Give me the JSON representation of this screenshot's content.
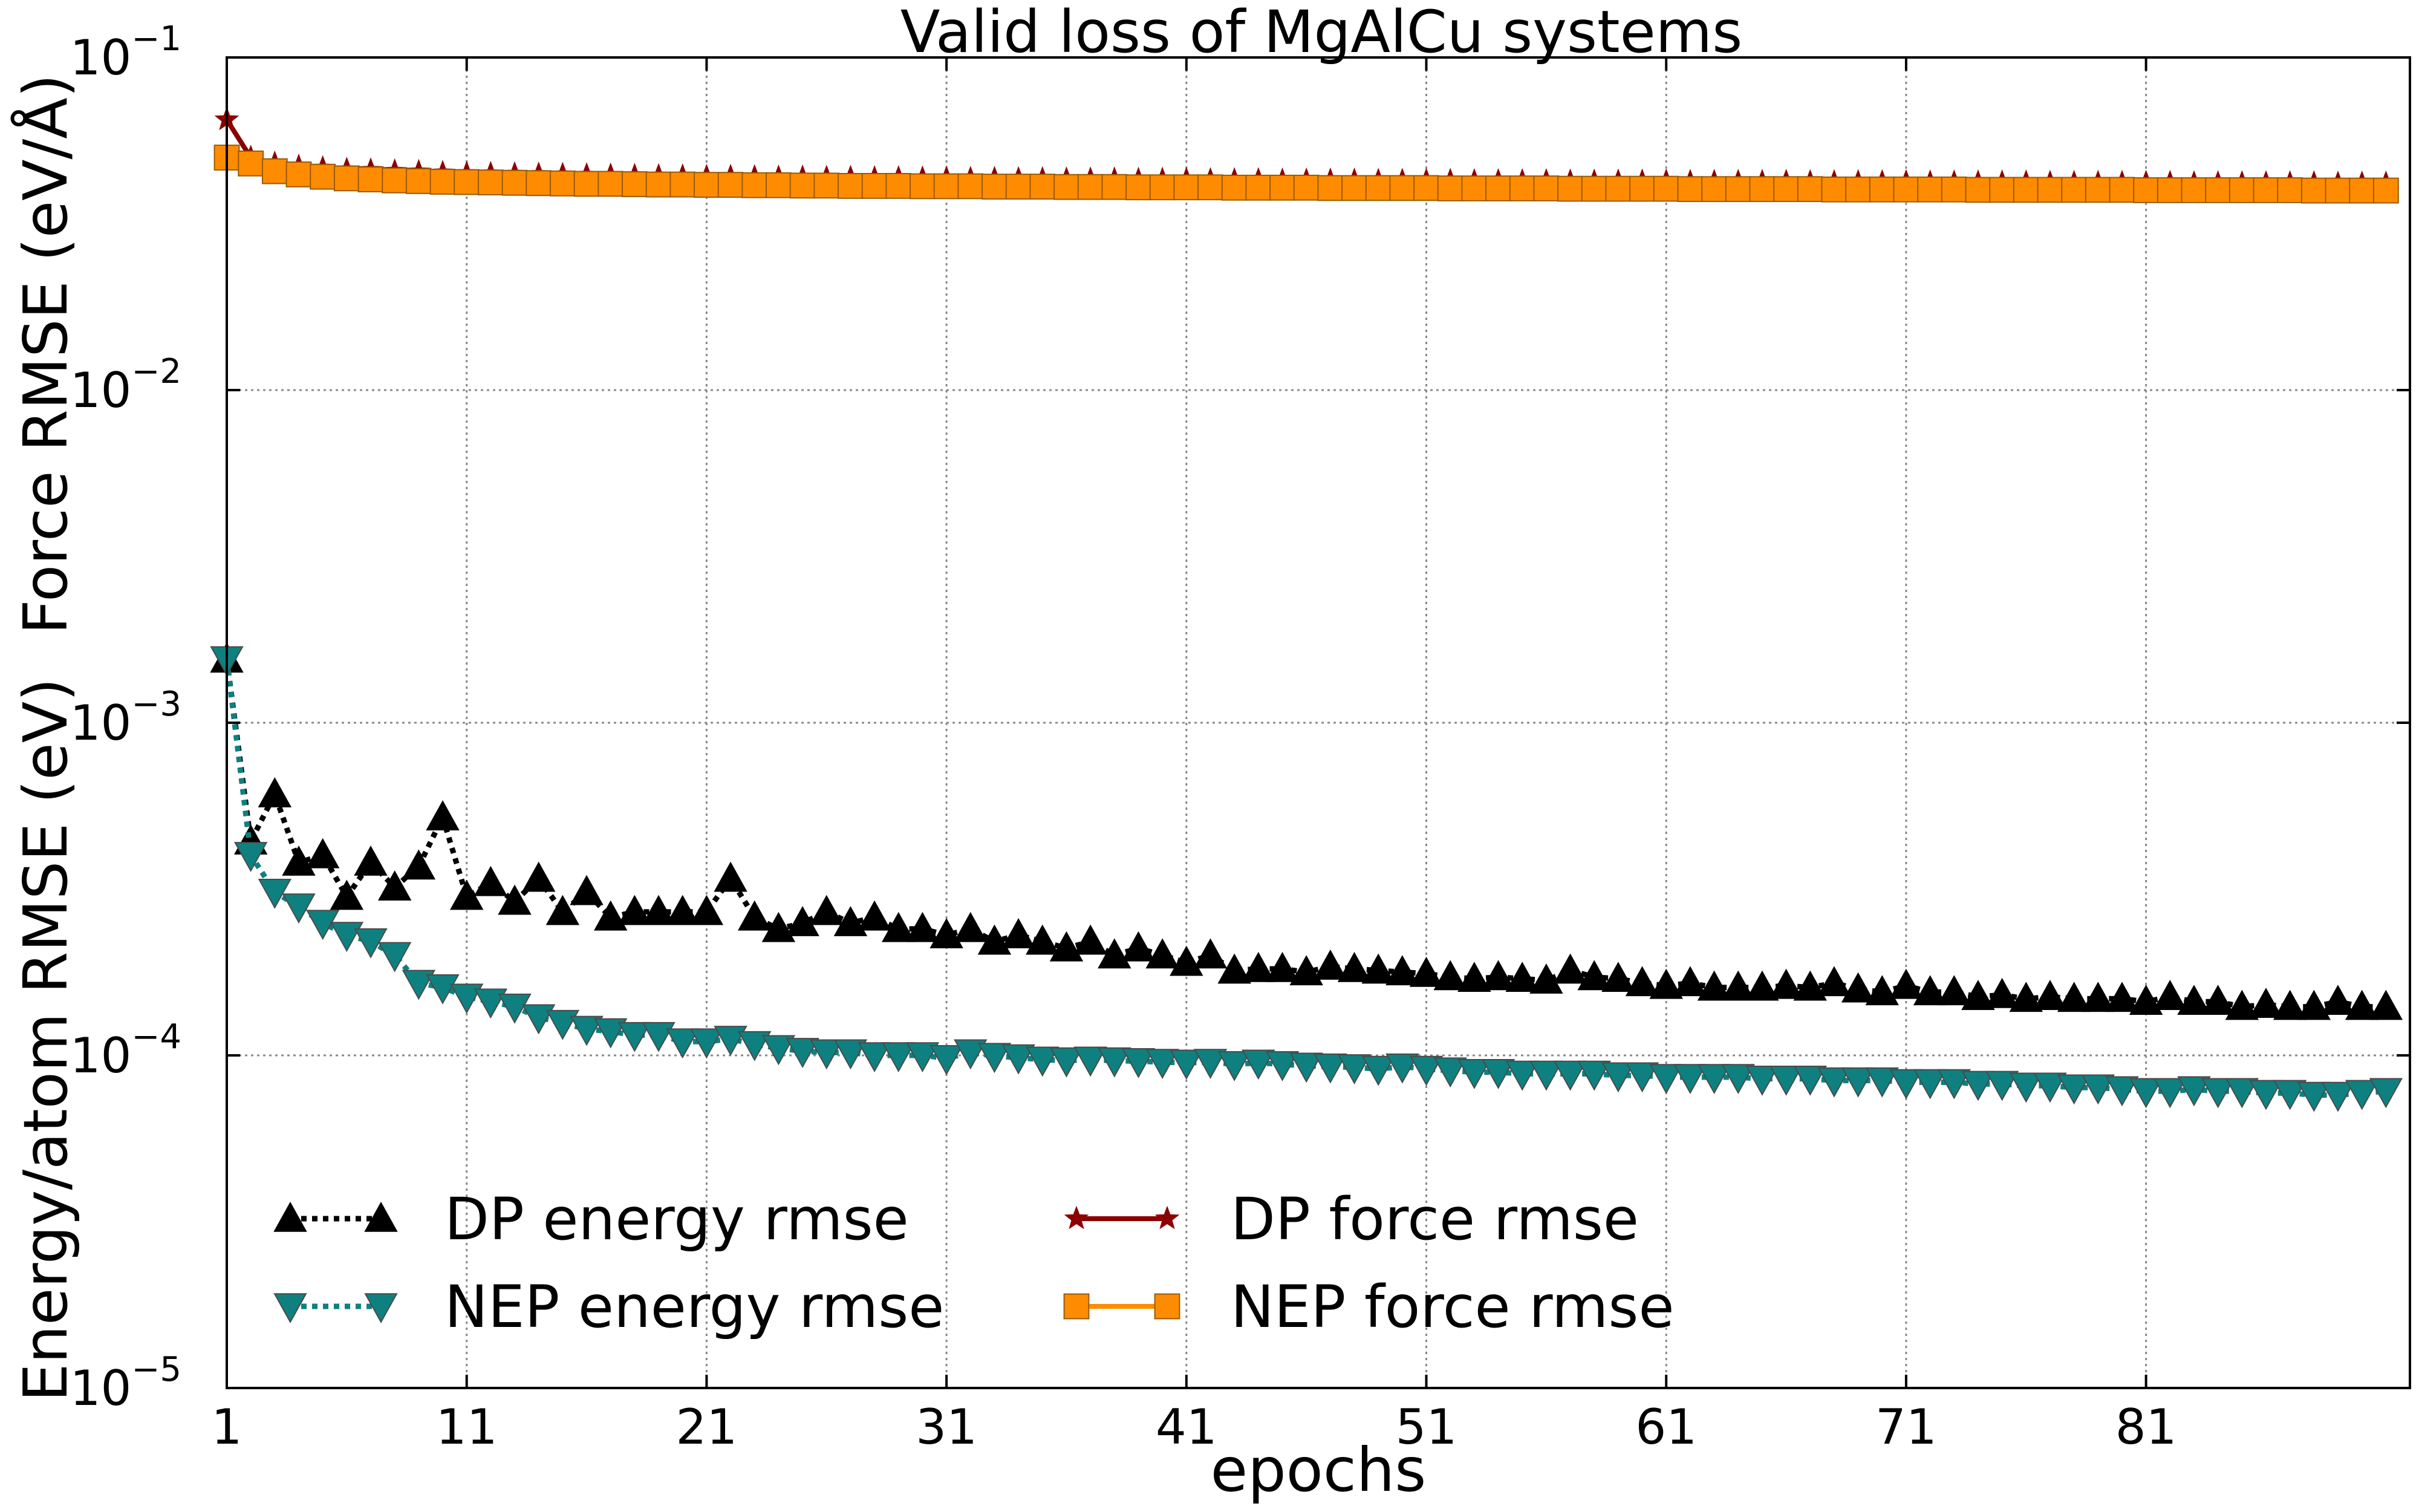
{
  "chart_data": {
    "type": "line",
    "title": "Valid loss of MgAlCu systems",
    "xlabel": "epochs",
    "ylabel_energy": "Energy/atom RMSE (eV)",
    "ylabel_force": "Force RMSE (eV/Å)",
    "yscale": "log",
    "xlim": [
      1,
      92
    ],
    "ylim": [
      1e-05,
      0.1
    ],
    "x_ticks": [
      1,
      11,
      21,
      31,
      41,
      51,
      61,
      71,
      81
    ],
    "x_tick_labels": [
      "1",
      "11",
      "21",
      "31",
      "41",
      "51",
      "61",
      "71",
      "81"
    ],
    "y_ticks": [
      1e-05,
      0.0001,
      0.001,
      0.01,
      0.1
    ],
    "y_tick_labels": [
      {
        "base": "10",
        "exp": "−5"
      },
      {
        "base": "10",
        "exp": "−4"
      },
      {
        "base": "10",
        "exp": "−3"
      },
      {
        "base": "10",
        "exp": "−2"
      },
      {
        "base": "10",
        "exp": "−1"
      }
    ],
    "grid": true,
    "legend_position": "lower-left",
    "x": [
      1,
      2,
      3,
      4,
      5,
      6,
      7,
      8,
      9,
      10,
      11,
      12,
      13,
      14,
      15,
      16,
      17,
      18,
      19,
      20,
      21,
      22,
      23,
      24,
      25,
      26,
      27,
      28,
      29,
      30,
      31,
      32,
      33,
      34,
      35,
      36,
      37,
      38,
      39,
      40,
      41,
      42,
      43,
      44,
      45,
      46,
      47,
      48,
      49,
      50,
      51,
      52,
      53,
      54,
      55,
      56,
      57,
      58,
      59,
      60,
      61,
      62,
      63,
      64,
      65,
      66,
      67,
      68,
      69,
      70,
      71,
      72,
      73,
      74,
      75,
      76,
      77,
      78,
      79,
      80,
      81,
      82,
      83,
      84,
      85,
      86,
      87,
      88,
      89,
      90,
      91
    ],
    "series": [
      {
        "name": "DP energy rmse",
        "color": "#000000",
        "marker": "triangle-up",
        "line": "dotted",
        "values": [
          0.00155,
          0.00044,
          0.00061,
          0.00038,
          0.0004,
          0.0003,
          0.00038,
          0.00032,
          0.00037,
          0.00052,
          0.0003,
          0.00033,
          0.00029,
          0.00034,
          0.00027,
          0.00031,
          0.00026,
          0.00027,
          0.00027,
          0.00027,
          0.00027,
          0.00034,
          0.00026,
          0.00024,
          0.00025,
          0.00027,
          0.00025,
          0.00026,
          0.00024,
          0.00024,
          0.00023,
          0.00024,
          0.00022,
          0.00023,
          0.00022,
          0.00021,
          0.00022,
          0.0002,
          0.00021,
          0.0002,
          0.00019,
          0.0002,
          0.00018,
          0.000182,
          0.000182,
          0.000178,
          0.000185,
          0.000182,
          0.00018,
          0.000178,
          0.000176,
          0.000172,
          0.00017,
          0.000172,
          0.00017,
          0.000168,
          0.00018,
          0.000172,
          0.00017,
          0.000165,
          0.000162,
          0.000165,
          0.00016,
          0.00016,
          0.00016,
          0.000162,
          0.00016,
          0.000165,
          0.000158,
          0.000155,
          0.000162,
          0.000155,
          0.000155,
          0.00015,
          0.000152,
          0.000148,
          0.00015,
          0.000148,
          0.000148,
          0.000148,
          0.000145,
          0.00015,
          0.000145,
          0.000145,
          0.00014,
          0.000142,
          0.00014,
          0.00014,
          0.000145,
          0.00014,
          0.00014
        ]
      },
      {
        "name": "NEP energy rmse",
        "color": "#0f8080",
        "marker": "triangle-down",
        "line": "dotted",
        "values": [
          0.00155,
          0.0004,
          0.00031,
          0.00028,
          0.00025,
          0.00023,
          0.00022,
          0.0002,
          0.000165,
          0.00016,
          0.00015,
          0.000145,
          0.00014,
          0.00013,
          0.000125,
          0.00012,
          0.000118,
          0.000115,
          0.000115,
          0.00011,
          0.00011,
          0.000112,
          0.000108,
          0.000105,
          0.000103,
          0.000102,
          0.000102,
          0.0001,
          0.0001,
          0.0001,
          9.8e-05,
          0.000102,
          9.95e-05,
          9.85e-05,
          9.7e-05,
          9.65e-05,
          9.7e-05,
          9.65e-05,
          9.6e-05,
          9.55e-05,
          9.5e-05,
          9.55e-05,
          9.4e-05,
          9.5e-05,
          9.4e-05,
          9.3e-05,
          9.25e-05,
          9.2e-05,
          9.1e-05,
          9.25e-05,
          9.1e-05,
          9e-05,
          8.9e-05,
          8.9e-05,
          8.8e-05,
          8.8e-05,
          8.8e-05,
          8.8e-05,
          8.7e-05,
          8.7e-05,
          8.6e-05,
          8.6e-05,
          8.6e-05,
          8.6e-05,
          8.5e-05,
          8.5e-05,
          8.5e-05,
          8.4e-05,
          8.4e-05,
          8.4e-05,
          8.3e-05,
          8.3e-05,
          8.3e-05,
          8.2e-05,
          8.2e-05,
          8.1e-05,
          8.1e-05,
          8e-05,
          8e-05,
          7.9e-05,
          7.8e-05,
          7.8e-05,
          7.9e-05,
          7.8e-05,
          7.8e-05,
          7.7e-05,
          7.7e-05,
          7.6e-05,
          7.6e-05,
          7.7e-05,
          7.8e-05
        ]
      },
      {
        "name": "DP force rmse",
        "color": "#8b0000",
        "marker": "star",
        "line": "solid",
        "values": [
          0.065,
          0.05,
          0.048,
          0.047,
          0.0465,
          0.046,
          0.0458,
          0.0455,
          0.0453,
          0.045,
          0.0448,
          0.0447,
          0.0446,
          0.0445,
          0.0444,
          0.0443,
          0.0442,
          0.0441,
          0.044,
          0.0439,
          0.0438,
          0.0438,
          0.0437,
          0.0436,
          0.0436,
          0.0435,
          0.0435,
          0.0434,
          0.0434,
          0.0433,
          0.0433,
          0.0432,
          0.0432,
          0.0431,
          0.0431,
          0.043,
          0.043,
          0.043,
          0.0429,
          0.0429,
          0.0429,
          0.0428,
          0.0428,
          0.0428,
          0.0427,
          0.0427,
          0.0427,
          0.0427,
          0.0426,
          0.0426,
          0.0426,
          0.0426,
          0.0425,
          0.0425,
          0.0425,
          0.0425,
          0.0424,
          0.0424,
          0.0424,
          0.0424,
          0.0424,
          0.0423,
          0.0423,
          0.0423,
          0.0423,
          0.0423,
          0.0422,
          0.0422,
          0.0422,
          0.0422,
          0.0422,
          0.0421,
          0.0421,
          0.0421,
          0.0421,
          0.0421,
          0.042,
          0.042,
          0.042,
          0.042,
          0.042,
          0.042,
          0.0419,
          0.0419,
          0.0419,
          0.0419,
          0.0419,
          0.0419,
          0.0418,
          0.0418,
          0.0418
        ]
      },
      {
        "name": "NEP force rmse",
        "color": "#ff8c00",
        "marker": "square",
        "line": "solid",
        "values": [
          0.05,
          0.048,
          0.0455,
          0.0445,
          0.0438,
          0.0433,
          0.043,
          0.0427,
          0.0425,
          0.0423,
          0.0422,
          0.0421,
          0.042,
          0.0419,
          0.0418,
          0.0417,
          0.0417,
          0.0416,
          0.0415,
          0.0415,
          0.0414,
          0.0414,
          0.0413,
          0.0413,
          0.0412,
          0.0412,
          0.0411,
          0.0411,
          0.0411,
          0.041,
          0.041,
          0.041,
          0.0409,
          0.0409,
          0.0409,
          0.0408,
          0.0408,
          0.0408,
          0.0407,
          0.0407,
          0.0407,
          0.0407,
          0.0406,
          0.0406,
          0.0406,
          0.0406,
          0.0405,
          0.0405,
          0.0405,
          0.0405,
          0.0405,
          0.0404,
          0.0404,
          0.0404,
          0.0404,
          0.0404,
          0.0403,
          0.0403,
          0.0403,
          0.0403,
          0.0403,
          0.0402,
          0.0402,
          0.0402,
          0.0402,
          0.0402,
          0.0402,
          0.0401,
          0.0401,
          0.0401,
          0.0401,
          0.0401,
          0.0401,
          0.04,
          0.04,
          0.04,
          0.04,
          0.04,
          0.04,
          0.04,
          0.0399,
          0.0399,
          0.0399,
          0.0399,
          0.0399,
          0.0399,
          0.0399,
          0.0398,
          0.0398,
          0.0398,
          0.0398
        ]
      }
    ]
  }
}
